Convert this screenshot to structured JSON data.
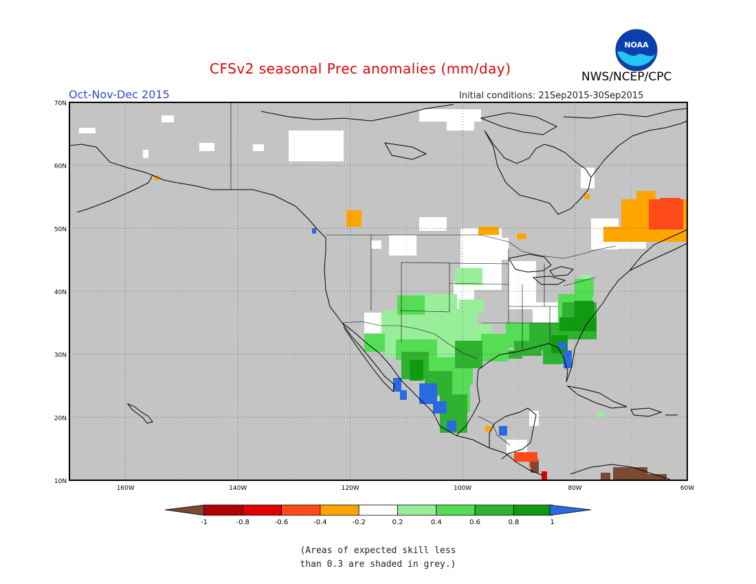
{
  "header": {
    "title": "CFSv2 seasonal Prec anomalies (mm/day)",
    "season": "Oct-Nov-Dec 2015",
    "initial_conditions": "Initial conditions: 21Sep2015-30Sep2015",
    "agency": "NWS/NCEP/CPC",
    "logo_text": "NOAA"
  },
  "map": {
    "background_color": "#c4c4c4",
    "lat_labels": [
      "70N",
      "60N",
      "50N",
      "40N",
      "30N",
      "20N",
      "10N"
    ],
    "lon_labels": [
      "160W",
      "140W",
      "120W",
      "100W",
      "80W",
      "60W"
    ]
  },
  "legend": {
    "labels": [
      "-1",
      "-0.8",
      "-0.6",
      "-0.4",
      "-0.2",
      "0.2",
      "0.4",
      "0.6",
      "0.8",
      "1"
    ],
    "colors": {
      "below_min": "#7a4a32",
      "bins": [
        "#b40000",
        "#e00000",
        "#ff4a1a",
        "#ffa500",
        "#ffffff",
        "#99ee99",
        "#55dd55",
        "#2fb22f",
        "#0f9a0f"
      ],
      "above_max": "#2a6ae0"
    }
  },
  "footnote": {
    "line1": "(Areas of expected skill less",
    "line2": "than 0.3 are shaded in grey.)"
  }
}
